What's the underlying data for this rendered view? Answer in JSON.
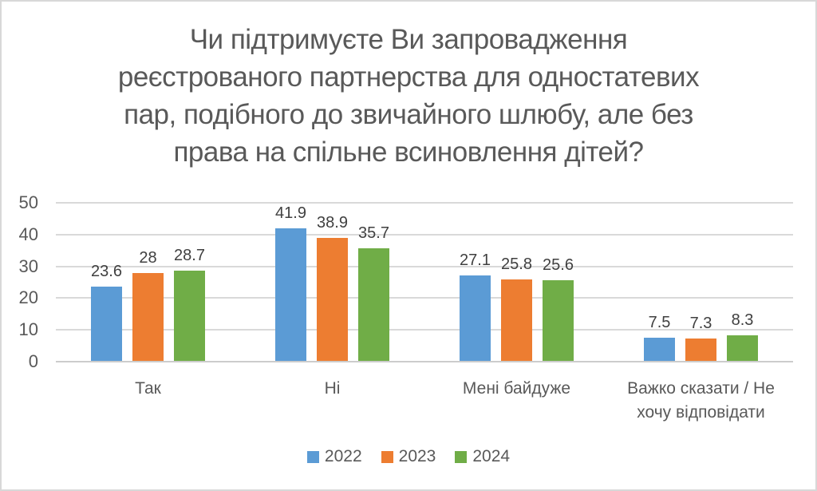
{
  "frame": {
    "background": "#ffffff",
    "border_color": "#d8d8d8"
  },
  "chart_data": {
    "type": "bar",
    "title": "Чи підтримуєте Ви запровадження реєстрованого партнерства для одностатевих пар, подібного до звичайного шлюбу, але без права на спільне всиновлення дітей?",
    "title_lines": [
      "Чи підтримуєте Ви запровадження",
      "реєстрованого партнерства для одностатевих",
      "пар, подібного до звичайного шлюбу, але без",
      "права на спільне всиновлення дітей?"
    ],
    "categories": [
      "Так",
      "Ні",
      "Мені байдуже",
      "Важко сказати / Не хочу відповідати"
    ],
    "series": [
      {
        "name": "2022",
        "color": "#5B9BD5",
        "values": [
          23.6,
          41.9,
          27.1,
          7.5
        ]
      },
      {
        "name": "2023",
        "color": "#ED7D31",
        "values": [
          28,
          38.9,
          25.8,
          7.3
        ]
      },
      {
        "name": "2024",
        "color": "#70AD47",
        "values": [
          28.7,
          35.7,
          25.6,
          8.3
        ]
      }
    ],
    "xlabel": "",
    "ylabel": "",
    "ylim": [
      0,
      50
    ],
    "yticks": [
      0,
      10,
      20,
      30,
      40,
      50
    ],
    "grid": true,
    "data_labels": true,
    "legend_position": "bottom",
    "gridline_color": "#d9d9d9",
    "axis_line_color": "#cccccc",
    "title_color": "#595959",
    "tick_label_color": "#595959",
    "data_label_color": "#404040"
  }
}
